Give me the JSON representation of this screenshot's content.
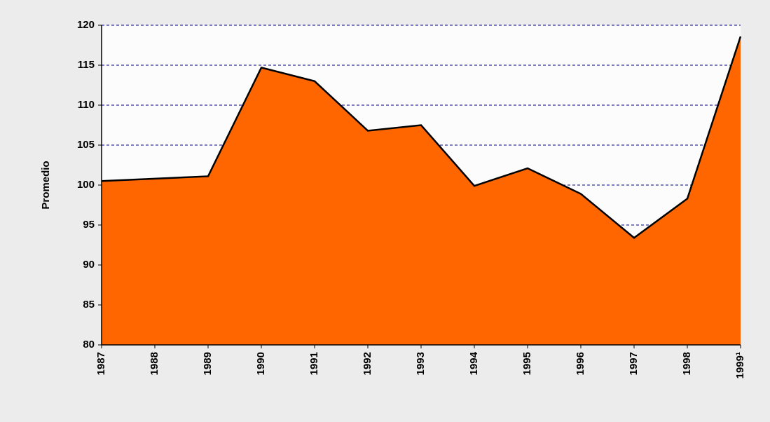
{
  "chart_data": {
    "type": "area",
    "y_label": "Promedio",
    "categories": [
      "1987",
      "1988",
      "1989",
      "1990",
      "1991",
      "1992",
      "1993",
      "1994",
      "1995",
      "1996",
      "1997",
      "1998",
      "1999¹"
    ],
    "values": [
      100.5,
      100.8,
      101.1,
      114.7,
      113.0,
      106.8,
      107.5,
      99.9,
      102.1,
      98.9,
      93.4,
      98.3,
      118.6
    ],
    "color": "#ff6600",
    "ylim": [
      80,
      120
    ],
    "yticks": [
      80,
      85,
      90,
      95,
      100,
      105,
      110,
      115,
      120
    ],
    "grid": true
  }
}
